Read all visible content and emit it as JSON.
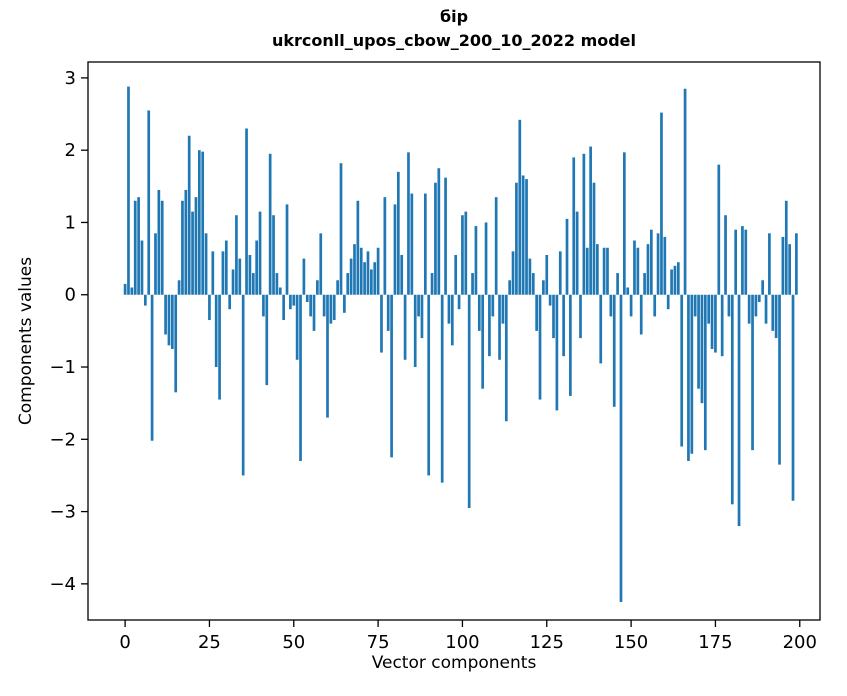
{
  "chart_data": {
    "type": "bar",
    "title": "бір",
    "subtitle": "ukrconll_upos_cbow_200_10_2022 model",
    "xlabel": "Vector components",
    "ylabel": "Components values",
    "bar_color": "#1f77b4",
    "axis_color": "#000000",
    "grid": false,
    "legend": false,
    "xlim": [
      -11,
      206
    ],
    "ylim": [
      -4.5,
      3.22
    ],
    "xticks": [
      0,
      25,
      50,
      75,
      100,
      125,
      150,
      175,
      200
    ],
    "yticks": [
      3,
      2,
      1,
      0,
      -1,
      -2,
      -3,
      -4
    ],
    "values": [
      0.15,
      2.88,
      0.1,
      1.3,
      1.35,
      0.75,
      -0.15,
      2.55,
      -2.02,
      0.85,
      1.45,
      1.3,
      -0.55,
      -0.7,
      -0.75,
      -1.35,
      0.2,
      1.3,
      1.45,
      2.2,
      1.15,
      1.35,
      2.0,
      1.98,
      0.85,
      -0.35,
      0.6,
      -1.0,
      -1.45,
      0.6,
      0.75,
      -0.2,
      0.35,
      1.1,
      0.5,
      -2.5,
      2.3,
      0.55,
      0.3,
      0.75,
      1.15,
      -0.3,
      -1.25,
      1.95,
      1.1,
      0.3,
      0.1,
      -0.35,
      1.25,
      -0.2,
      -0.15,
      -0.9,
      -2.3,
      0.5,
      -0.1,
      -0.3,
      -0.5,
      0.2,
      0.85,
      -0.3,
      -1.7,
      -0.4,
      -0.35,
      0.2,
      1.82,
      -0.25,
      0.3,
      0.5,
      0.7,
      1.3,
      0.65,
      0.45,
      0.6,
      0.35,
      0.45,
      0.65,
      -0.8,
      1.35,
      -0.5,
      -2.25,
      1.25,
      1.7,
      0.55,
      -0.9,
      1.97,
      1.4,
      -1.0,
      -0.3,
      -0.6,
      1.4,
      -2.5,
      0.3,
      1.55,
      1.75,
      -2.6,
      1.62,
      -0.4,
      -0.7,
      0.55,
      -0.2,
      1.1,
      1.15,
      -2.95,
      0.3,
      0.95,
      -0.5,
      -1.3,
      1.0,
      -0.85,
      -0.3,
      1.35,
      -0.9,
      -0.4,
      -1.75,
      0.2,
      0.6,
      1.55,
      2.42,
      1.65,
      1.6,
      0.5,
      0.3,
      -0.5,
      -1.45,
      0.2,
      0.55,
      -0.15,
      -0.6,
      -1.6,
      0.6,
      -0.85,
      1.05,
      -1.4,
      1.9,
      1.15,
      -0.6,
      1.95,
      0.65,
      2.05,
      1.55,
      0.7,
      -0.95,
      0.65,
      0.65,
      -0.3,
      -1.55,
      0.3,
      -4.25,
      1.97,
      0.1,
      -0.3,
      0.75,
      0.65,
      -0.55,
      0.3,
      0.7,
      0.9,
      -0.3,
      0.85,
      2.52,
      0.8,
      -0.2,
      0.35,
      0.4,
      0.45,
      -2.1,
      2.85,
      -2.3,
      -2.2,
      -0.3,
      -1.3,
      -1.5,
      -2.15,
      -0.4,
      -0.75,
      -0.8,
      1.8,
      -0.85,
      1.1,
      -0.3,
      -2.9,
      0.9,
      -3.2,
      0.95,
      0.9,
      -0.4,
      -2.15,
      -0.3,
      -0.1,
      0.2,
      -0.4,
      0.85,
      -0.5,
      -0.6,
      -2.35,
      0.8,
      1.3,
      0.7,
      -2.85,
      0.85
    ]
  }
}
